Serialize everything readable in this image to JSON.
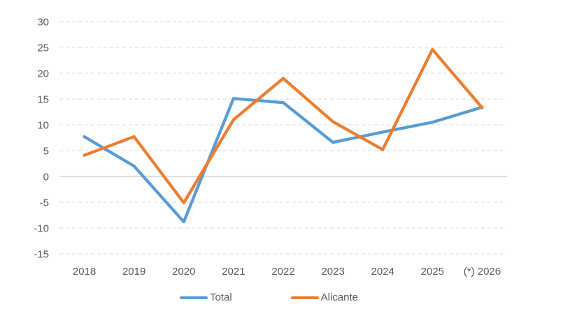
{
  "chart_data": {
    "type": "line",
    "title": "",
    "xlabel": "",
    "ylabel": "",
    "categories": [
      "2018",
      "2019",
      "2020",
      "2021",
      "2022",
      "2023",
      "2024",
      "2025",
      "(*) 2026"
    ],
    "series": [
      {
        "name": "Total",
        "color": "#5B9BD5",
        "values": [
          7.7,
          2.0,
          -8.8,
          15.1,
          14.3,
          6.6,
          8.6,
          10.5,
          13.4
        ]
      },
      {
        "name": "Alicante",
        "color": "#ED7D31",
        "values": [
          4.1,
          7.7,
          -5.1,
          11.0,
          19.0,
          10.6,
          5.2,
          24.6,
          13.3
        ]
      }
    ],
    "ylim": [
      -15,
      30
    ],
    "yticks": [
      -15,
      -10,
      -5,
      0,
      5,
      10,
      15,
      20,
      25,
      30
    ],
    "grid": "horizontal-dashed",
    "legend_position": "bottom",
    "colors": {
      "gridline": "#D9D9D9",
      "zero_line": "#BFBFBF",
      "tick_label": "#595959",
      "background": "#FFFFFF"
    }
  }
}
